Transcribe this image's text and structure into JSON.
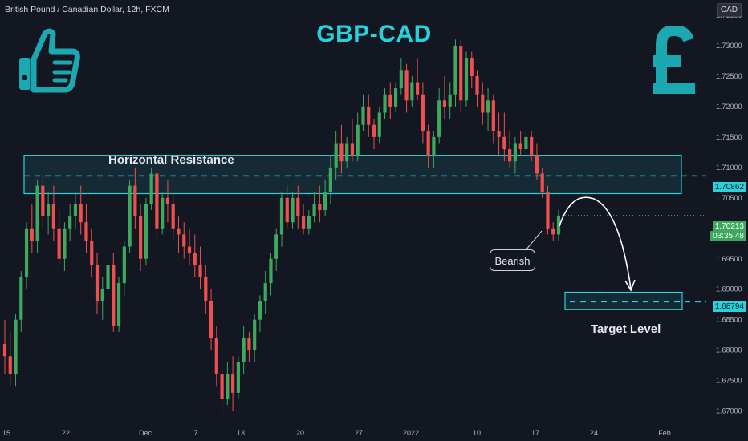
{
  "header": {
    "symbol_info": "British Pound / Canadian Dollar, 12h, FXCM",
    "currency_badge": "CAD",
    "title": "GBP-CAD"
  },
  "annotations": {
    "resistance_label": "Horizontal Resistance",
    "target_label": "Target Level",
    "callout_label": "Bearish"
  },
  "icons": {
    "left": "thumbs-up-icon",
    "right": "pound-sign-icon",
    "accent_color": "#1ba8b0"
  },
  "price_tags": {
    "resistance": "1.70862",
    "target": "1.68794",
    "last_price": "1.70213",
    "countdown": "03:35:48"
  },
  "colors": {
    "up": "#3fa85f",
    "down": "#ef4f4f",
    "zone": "#26d3dc",
    "background": "#131722"
  },
  "chart_data": {
    "type": "candlestick",
    "y_ticks": [
      "1.67000",
      "1.67500",
      "1.68000",
      "1.68500",
      "1.69000",
      "1.69500",
      "1.70000",
      "1.70500",
      "1.71000",
      "1.71500",
      "1.72000",
      "1.72500",
      "1.73000",
      "1.73500"
    ],
    "x_ticks": [
      "15",
      "22",
      "Dec",
      "7",
      "13",
      "20",
      "27",
      "2022",
      "10",
      "17",
      "24",
      "Feb"
    ],
    "ylim": [
      1.6685,
      1.7375
    ],
    "resistance_zone": {
      "low": 1.7057,
      "high": 1.712,
      "mid": 1.70862
    },
    "target_zone": {
      "low": 1.6867,
      "high": 1.6895,
      "mid": 1.68794
    },
    "last_price": 1.70213,
    "ohlc": [
      [
        1.681,
        1.685,
        1.676,
        1.679
      ],
      [
        1.679,
        1.683,
        1.674,
        1.676
      ],
      [
        1.676,
        1.686,
        1.674,
        1.685
      ],
      [
        1.685,
        1.693,
        1.683,
        1.692
      ],
      [
        1.692,
        1.701,
        1.69,
        1.7
      ],
      [
        1.7,
        1.704,
        1.696,
        1.698
      ],
      [
        1.698,
        1.708,
        1.696,
        1.707
      ],
      [
        1.707,
        1.709,
        1.7,
        1.702
      ],
      [
        1.702,
        1.706,
        1.699,
        1.704
      ],
      [
        1.704,
        1.707,
        1.698,
        1.7
      ],
      [
        1.7,
        1.703,
        1.694,
        1.695
      ],
      [
        1.695,
        1.701,
        1.693,
        1.7
      ],
      [
        1.7,
        1.704,
        1.698,
        1.702
      ],
      [
        1.702,
        1.706,
        1.7,
        1.704
      ],
      [
        1.704,
        1.707,
        1.699,
        1.701
      ],
      [
        1.701,
        1.704,
        1.696,
        1.698
      ],
      [
        1.698,
        1.7,
        1.692,
        1.694
      ],
      [
        1.694,
        1.696,
        1.686,
        1.688
      ],
      [
        1.688,
        1.692,
        1.685,
        1.69
      ],
      [
        1.69,
        1.696,
        1.688,
        1.694
      ],
      [
        1.694,
        1.696,
        1.683,
        1.684
      ],
      [
        1.684,
        1.692,
        1.683,
        1.691
      ],
      [
        1.691,
        1.698,
        1.689,
        1.697
      ],
      [
        1.697,
        1.708,
        1.696,
        1.707
      ],
      [
        1.707,
        1.71,
        1.7,
        1.702
      ],
      [
        1.702,
        1.704,
        1.693,
        1.695
      ],
      [
        1.695,
        1.705,
        1.694,
        1.704
      ],
      [
        1.704,
        1.71,
        1.703,
        1.709
      ],
      [
        1.709,
        1.71,
        1.698,
        1.7
      ],
      [
        1.7,
        1.706,
        1.699,
        1.705
      ],
      [
        1.705,
        1.708,
        1.701,
        1.704
      ],
      [
        1.704,
        1.706,
        1.698,
        1.7
      ],
      [
        1.7,
        1.702,
        1.696,
        1.699
      ],
      [
        1.699,
        1.701,
        1.695,
        1.697
      ],
      [
        1.697,
        1.7,
        1.694,
        1.696
      ],
      [
        1.696,
        1.699,
        1.692,
        1.694
      ],
      [
        1.694,
        1.697,
        1.69,
        1.692
      ],
      [
        1.692,
        1.694,
        1.686,
        1.688
      ],
      [
        1.688,
        1.69,
        1.68,
        1.682
      ],
      [
        1.682,
        1.684,
        1.674,
        1.676
      ],
      [
        1.676,
        1.677,
        1.6695,
        1.672
      ],
      [
        1.672,
        1.678,
        1.671,
        1.676
      ],
      [
        1.676,
        1.679,
        1.67,
        1.673
      ],
      [
        1.673,
        1.679,
        1.672,
        1.678
      ],
      [
        1.678,
        1.684,
        1.676,
        1.682
      ],
      [
        1.682,
        1.683,
        1.678,
        1.68
      ],
      [
        1.68,
        1.686,
        1.678,
        1.685
      ],
      [
        1.685,
        1.689,
        1.683,
        1.688
      ],
      [
        1.688,
        1.693,
        1.686,
        1.691
      ],
      [
        1.691,
        1.696,
        1.689,
        1.695
      ],
      [
        1.695,
        1.7,
        1.693,
        1.699
      ],
      [
        1.699,
        1.706,
        1.697,
        1.705
      ],
      [
        1.705,
        1.707,
        1.7,
        1.701
      ],
      [
        1.701,
        1.706,
        1.7,
        1.705
      ],
      [
        1.705,
        1.707,
        1.7,
        1.702
      ],
      [
        1.702,
        1.704,
        1.699,
        1.7
      ],
      [
        1.7,
        1.703,
        1.699,
        1.702
      ],
      [
        1.702,
        1.706,
        1.701,
        1.704
      ],
      [
        1.704,
        1.707,
        1.701,
        1.703
      ],
      [
        1.703,
        1.708,
        1.702,
        1.706
      ],
      [
        1.706,
        1.712,
        1.704,
        1.71
      ],
      [
        1.71,
        1.716,
        1.708,
        1.714
      ],
      [
        1.714,
        1.717,
        1.709,
        1.711
      ],
      [
        1.711,
        1.715,
        1.71,
        1.714
      ],
      [
        1.714,
        1.718,
        1.711,
        1.712
      ],
      [
        1.712,
        1.719,
        1.711,
        1.717
      ],
      [
        1.717,
        1.722,
        1.716,
        1.72
      ],
      [
        1.72,
        1.722,
        1.715,
        1.717
      ],
      [
        1.717,
        1.718,
        1.713,
        1.715
      ],
      [
        1.715,
        1.72,
        1.714,
        1.719
      ],
      [
        1.719,
        1.723,
        1.718,
        1.722
      ],
      [
        1.722,
        1.724,
        1.718,
        1.72
      ],
      [
        1.72,
        1.724,
        1.719,
        1.723
      ],
      [
        1.723,
        1.728,
        1.722,
        1.726
      ],
      [
        1.726,
        1.727,
        1.719,
        1.721
      ],
      [
        1.721,
        1.725,
        1.72,
        1.724
      ],
      [
        1.724,
        1.728,
        1.721,
        1.722
      ],
      [
        1.722,
        1.724,
        1.714,
        1.716
      ],
      [
        1.716,
        1.717,
        1.71,
        1.712
      ],
      [
        1.712,
        1.716,
        1.71,
        1.715
      ],
      [
        1.715,
        1.723,
        1.714,
        1.721
      ],
      [
        1.721,
        1.725,
        1.718,
        1.72
      ],
      [
        1.72,
        1.724,
        1.718,
        1.722
      ],
      [
        1.722,
        1.731,
        1.72,
        1.73
      ],
      [
        1.73,
        1.731,
        1.719,
        1.721
      ],
      [
        1.721,
        1.729,
        1.72,
        1.728
      ],
      [
        1.728,
        1.729,
        1.723,
        1.725
      ],
      [
        1.725,
        1.726,
        1.72,
        1.722
      ],
      [
        1.722,
        1.724,
        1.717,
        1.719
      ],
      [
        1.719,
        1.723,
        1.716,
        1.721
      ],
      [
        1.721,
        1.722,
        1.714,
        1.716
      ],
      [
        1.716,
        1.719,
        1.712,
        1.715
      ],
      [
        1.715,
        1.719,
        1.711,
        1.713
      ],
      [
        1.713,
        1.716,
        1.71,
        1.711
      ],
      [
        1.711,
        1.715,
        1.709,
        1.714
      ],
      [
        1.714,
        1.716,
        1.712,
        1.713
      ],
      [
        1.713,
        1.716,
        1.712,
        1.715
      ],
      [
        1.715,
        1.716,
        1.711,
        1.712
      ],
      [
        1.712,
        1.714,
        1.708,
        1.709
      ],
      [
        1.709,
        1.71,
        1.705,
        1.706
      ],
      [
        1.706,
        1.707,
        1.699,
        1.7
      ],
      [
        1.7,
        1.701,
        1.698,
        1.699
      ],
      [
        1.699,
        1.703,
        1.698,
        1.7021
      ]
    ]
  }
}
